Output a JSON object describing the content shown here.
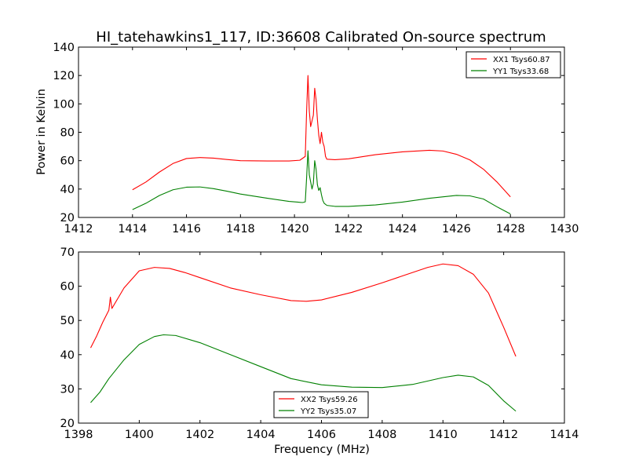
{
  "title": "HI_tatehawkins1_117, ID:36608 Calibrated On-source spectrum",
  "colors": {
    "xx": "#ff0000",
    "yy": "#008000"
  },
  "chart_data": [
    {
      "type": "line",
      "ylabel": "Power in Kelvin",
      "xlabel": "",
      "xlim": [
        1412,
        1430
      ],
      "ylim": [
        20,
        140
      ],
      "xticks": [
        1412,
        1414,
        1416,
        1418,
        1420,
        1422,
        1424,
        1426,
        1428,
        1430
      ],
      "yticks": [
        20,
        40,
        60,
        80,
        100,
        120,
        140
      ],
      "legend_position": "top-right",
      "series": [
        {
          "name": "XX1 Tsys60.87",
          "color": "#ff0000",
          "points": [
            [
              1414,
              39.5
            ],
            [
              1414.5,
              45
            ],
            [
              1415,
              52
            ],
            [
              1415.5,
              58
            ],
            [
              1416,
              61.5
            ],
            [
              1416.5,
              62.2
            ],
            [
              1417,
              61.8
            ],
            [
              1417.5,
              60.8
            ],
            [
              1418,
              60.0
            ],
            [
              1419,
              59.8
            ],
            [
              1419.8,
              59.8
            ],
            [
              1420.2,
              60.3
            ],
            [
              1420.4,
              63
            ],
            [
              1420.45,
              95
            ],
            [
              1420.5,
              120
            ],
            [
              1420.55,
              95
            ],
            [
              1420.6,
              84
            ],
            [
              1420.65,
              88
            ],
            [
              1420.7,
              92
            ],
            [
              1420.75,
              111
            ],
            [
              1420.8,
              103
            ],
            [
              1420.85,
              89
            ],
            [
              1420.9,
              78
            ],
            [
              1420.95,
              72
            ],
            [
              1421.0,
              80
            ],
            [
              1421.05,
              73
            ],
            [
              1421.1,
              70
            ],
            [
              1421.15,
              63
            ],
            [
              1421.2,
              61
            ],
            [
              1421.5,
              60.7
            ],
            [
              1422,
              61.3
            ],
            [
              1423,
              64.2
            ],
            [
              1424,
              66.2
            ],
            [
              1425,
              67.3
            ],
            [
              1425.5,
              66.8
            ],
            [
              1426,
              64.5
            ],
            [
              1426.5,
              60.5
            ],
            [
              1427,
              54
            ],
            [
              1427.5,
              45
            ],
            [
              1428,
              34.5
            ]
          ]
        },
        {
          "name": "YY1 Tsys33.68",
          "color": "#008000",
          "points": [
            [
              1414,
              25.5
            ],
            [
              1414.5,
              30
            ],
            [
              1415,
              35.5
            ],
            [
              1415.5,
              39.5
            ],
            [
              1416,
              41.3
            ],
            [
              1416.5,
              41.5
            ],
            [
              1417,
              40.3
            ],
            [
              1417.5,
              38.5
            ],
            [
              1418,
              36.5
            ],
            [
              1419,
              33.5
            ],
            [
              1419.8,
              31.3
            ],
            [
              1420.3,
              30.5
            ],
            [
              1420.4,
              31
            ],
            [
              1420.45,
              48
            ],
            [
              1420.5,
              67
            ],
            [
              1420.55,
              50
            ],
            [
              1420.6,
              45
            ],
            [
              1420.65,
              40
            ],
            [
              1420.7,
              44
            ],
            [
              1420.75,
              60
            ],
            [
              1420.8,
              54
            ],
            [
              1420.85,
              43
            ],
            [
              1420.9,
              39
            ],
            [
              1420.95,
              41
            ],
            [
              1421.0,
              36
            ],
            [
              1421.05,
              32
            ],
            [
              1421.1,
              30
            ],
            [
              1421.2,
              28.5
            ],
            [
              1421.5,
              27.8
            ],
            [
              1422,
              27.8
            ],
            [
              1423,
              28.8
            ],
            [
              1424,
              30.8
            ],
            [
              1425,
              33.5
            ],
            [
              1426,
              35.5
            ],
            [
              1426.5,
              35.2
            ],
            [
              1427,
              33
            ],
            [
              1427.5,
              27.5
            ],
            [
              1428,
              22.5
            ]
          ]
        }
      ]
    },
    {
      "type": "line",
      "ylabel": "",
      "xlabel": "Frequency (MHz)",
      "xlim": [
        1398,
        1414
      ],
      "ylim": [
        20,
        70
      ],
      "xticks": [
        1398,
        1400,
        1402,
        1404,
        1406,
        1408,
        1410,
        1412,
        1414
      ],
      "yticks": [
        20,
        30,
        40,
        50,
        60,
        70
      ],
      "legend_position": "lower-center",
      "series": [
        {
          "name": "XX2 Tsys59.26",
          "color": "#ff0000",
          "points": [
            [
              1398.4,
              42
            ],
            [
              1398.6,
              45.5
            ],
            [
              1398.8,
              49.5
            ],
            [
              1399.0,
              53
            ],
            [
              1399.05,
              56.8
            ],
            [
              1399.1,
              53.5
            ],
            [
              1399.3,
              56.5
            ],
            [
              1399.5,
              59.5
            ],
            [
              1400,
              64.5
            ],
            [
              1400.5,
              65.5
            ],
            [
              1401,
              65.2
            ],
            [
              1401.5,
              64
            ],
            [
              1402,
              62.5
            ],
            [
              1403,
              59.5
            ],
            [
              1404,
              57.5
            ],
            [
              1405,
              55.8
            ],
            [
              1405.5,
              55.6
            ],
            [
              1406,
              56
            ],
            [
              1407,
              58.2
            ],
            [
              1408,
              61
            ],
            [
              1409,
              64
            ],
            [
              1409.5,
              65.5
            ],
            [
              1410,
              66.5
            ],
            [
              1410.5,
              66
            ],
            [
              1411,
              63.5
            ],
            [
              1411.5,
              58
            ],
            [
              1412,
              48
            ],
            [
              1412.4,
              39.5
            ]
          ]
        },
        {
          "name": "YY2 Tsys35.07",
          "color": "#008000",
          "points": [
            [
              1398.4,
              26
            ],
            [
              1398.7,
              29
            ],
            [
              1399,
              33
            ],
            [
              1399.5,
              38.5
            ],
            [
              1400,
              43
            ],
            [
              1400.5,
              45.3
            ],
            [
              1400.8,
              45.8
            ],
            [
              1401.2,
              45.6
            ],
            [
              1402,
              43.5
            ],
            [
              1403,
              40
            ],
            [
              1404,
              36.5
            ],
            [
              1405,
              33
            ],
            [
              1406,
              31.2
            ],
            [
              1407,
              30.5
            ],
            [
              1408,
              30.4
            ],
            [
              1409,
              31.3
            ],
            [
              1410,
              33.3
            ],
            [
              1410.5,
              34
            ],
            [
              1411,
              33.5
            ],
            [
              1411.5,
              31
            ],
            [
              1412,
              26.5
            ],
            [
              1412.4,
              23.5
            ]
          ]
        }
      ]
    }
  ]
}
